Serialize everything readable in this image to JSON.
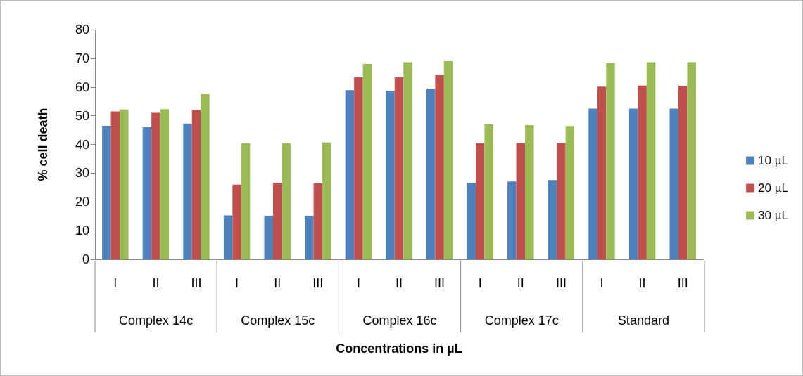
{
  "chart_data": {
    "type": "bar",
    "xlabel": "Concentrations in µL",
    "ylabel": "% cell death",
    "categories": [
      "I",
      "II",
      "III",
      "I",
      "II",
      "III",
      "I",
      "II",
      "III",
      "I",
      "II",
      "III",
      "I",
      "II",
      "III"
    ],
    "annotations": [
      "Complex 14c",
      "Complex 15c",
      "Complex 16c",
      "Complex 17c",
      "Standard"
    ],
    "series": [
      {
        "name": "10 µL",
        "color": "#4f81bd",
        "values": [
          46.5,
          46,
          47.3,
          15.3,
          15.1,
          15.1,
          58.9,
          58.7,
          59.4,
          26.6,
          27.1,
          27.6,
          52.5,
          52.5,
          52.5
        ]
      },
      {
        "name": "20 µL",
        "color": "#c0504d",
        "values": [
          51.5,
          51,
          52,
          26,
          26.6,
          26.4,
          63.4,
          63.4,
          64.1,
          40.4,
          40.5,
          40.5,
          60.1,
          60.5,
          60.4
        ]
      },
      {
        "name": "30 µL",
        "color": "#9bbb59",
        "values": [
          52.2,
          52.3,
          57.5,
          40.4,
          40.4,
          40.7,
          68,
          68.6,
          69,
          47,
          46.7,
          46.4,
          68.4,
          68.6,
          68.6
        ]
      }
    ],
    "ylim": [
      0,
      80
    ],
    "yticks": [
      0,
      10,
      20,
      30,
      40,
      50,
      60,
      70,
      80
    ],
    "grid": false,
    "legend": "right"
  }
}
